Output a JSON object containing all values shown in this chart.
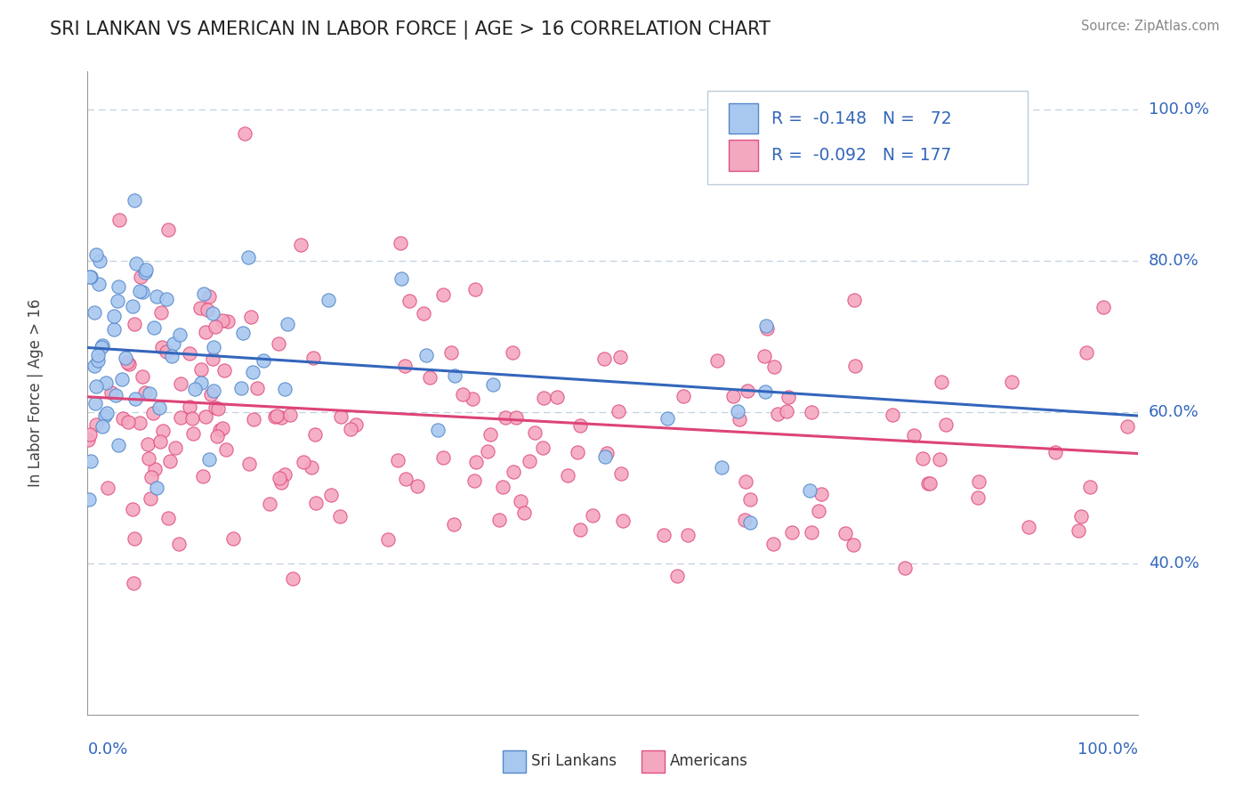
{
  "title": "SRI LANKAN VS AMERICAN IN LABOR FORCE | AGE > 16 CORRELATION CHART",
  "source": "Source: ZipAtlas.com",
  "ylabel": "In Labor Force | Age > 16",
  "sri_lankan_color": "#a8c8f0",
  "american_color": "#f4a8c0",
  "sri_lankan_edge_color": "#5588cc",
  "american_edge_color": "#e05080",
  "sri_lankan_line_color": "#3366bb",
  "american_line_color": "#dd4477",
  "background_color": "#ffffff",
  "grid_color": "#c0d0e0",
  "text_color": "#3366bb",
  "title_color": "#222222",
  "sri_lankan_R": -0.148,
  "american_R": -0.092,
  "sri_lankan_N": 72,
  "american_N": 177,
  "xlim": [
    0.0,
    1.0
  ],
  "ylim": [
    0.2,
    1.05
  ],
  "yticks": [
    0.4,
    0.6,
    0.8,
    1.0
  ],
  "ytick_labels": [
    "40.0%",
    "60.0%",
    "80.0%",
    "100.0%"
  ],
  "sl_trend_start": 0.685,
  "sl_trend_end": 0.595,
  "am_trend_start": 0.62,
  "am_trend_end": 0.545
}
